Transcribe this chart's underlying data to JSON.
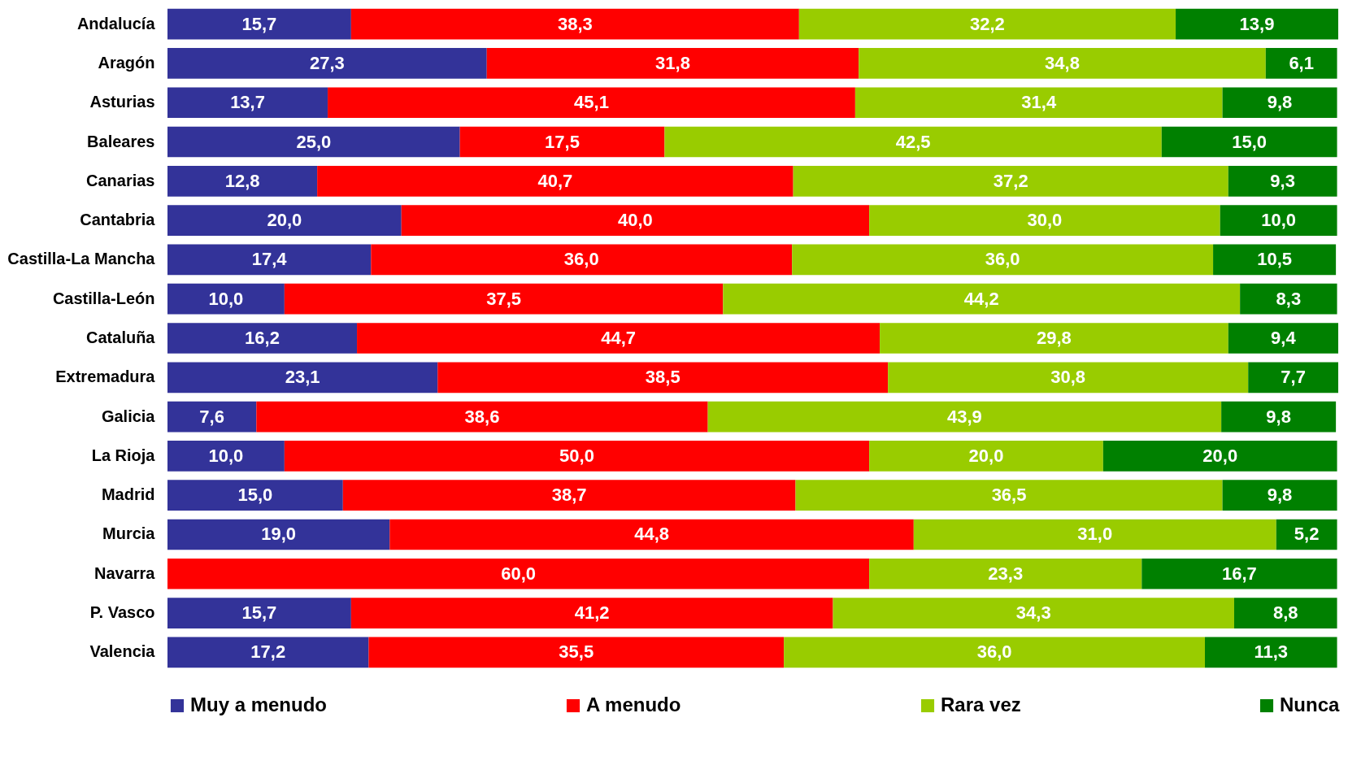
{
  "chart_data": {
    "type": "bar",
    "orientation": "horizontal",
    "stacked": true,
    "legend": "bottom",
    "tick_labels": "y",
    "categories": [
      "Andalucía",
      "Aragón",
      "Asturias",
      "Baleares",
      "Canarias",
      "Cantabria",
      "Castilla-La Mancha",
      "Castilla-León",
      "Cataluña",
      "Extremadura",
      "Galicia",
      "La Rioja",
      "Madrid",
      "Murcia",
      "Navarra",
      "P. Vasco",
      "Valencia"
    ],
    "series": [
      {
        "name": "Muy a menudo",
        "color": "#333399",
        "values": [
          15.7,
          27.3,
          13.7,
          25.0,
          12.8,
          20.0,
          17.4,
          10.0,
          16.2,
          23.1,
          7.6,
          10.0,
          15.0,
          19.0,
          null,
          15.7,
          17.2
        ],
        "value_labels": [
          "15,7",
          "27,3",
          "13,7",
          "25,0",
          "12,8",
          "20,0",
          "17,4",
          "10,0",
          "16,2",
          "23,1",
          "7,6",
          "10,0",
          "15,0",
          "19,0",
          null,
          "15,7",
          "17,2"
        ]
      },
      {
        "name": "A menudo",
        "color": "#ff0000",
        "values": [
          38.3,
          31.8,
          45.1,
          17.5,
          40.7,
          40.0,
          36.0,
          37.5,
          44.7,
          38.5,
          38.6,
          50.0,
          38.7,
          44.8,
          60.0,
          41.2,
          35.5
        ],
        "value_labels": [
          "38,3",
          "31,8",
          "45,1",
          "17,5",
          "40,7",
          "40,0",
          "36,0",
          "37,5",
          "44,7",
          "38,5",
          "38,6",
          "50,0",
          "38,7",
          "44,8",
          "60,0",
          "41,2",
          "35,5"
        ]
      },
      {
        "name": "Rara vez",
        "color": "#99cc00",
        "values": [
          32.2,
          34.8,
          31.4,
          42.5,
          37.2,
          30.0,
          36.0,
          44.2,
          29.8,
          30.8,
          43.9,
          20.0,
          36.5,
          31.0,
          23.3,
          34.3,
          36.0
        ],
        "value_labels": [
          "32,2",
          "34,8",
          "31,4",
          "42,5",
          "37,2",
          "30,0",
          "36,0",
          "44,2",
          "29,8",
          "30,8",
          "43,9",
          "20,0",
          "36,5",
          "31,0",
          "23,3",
          "34,3",
          "36,0"
        ]
      },
      {
        "name": "Nunca",
        "color": "#008000",
        "values": [
          13.9,
          6.1,
          9.8,
          15.0,
          9.3,
          10.0,
          10.5,
          8.3,
          9.4,
          7.7,
          9.8,
          20.0,
          9.8,
          5.2,
          16.7,
          8.8,
          11.3
        ],
        "value_labels": [
          "13,9",
          "6,1",
          "9,8",
          "15,0",
          "9,3",
          "10,0",
          "10,5",
          "8,3",
          "9,4",
          "7,7",
          "9,8",
          "20,0",
          "9,8",
          "5,2",
          "16,7",
          "8,8",
          "11,3"
        ]
      }
    ]
  }
}
